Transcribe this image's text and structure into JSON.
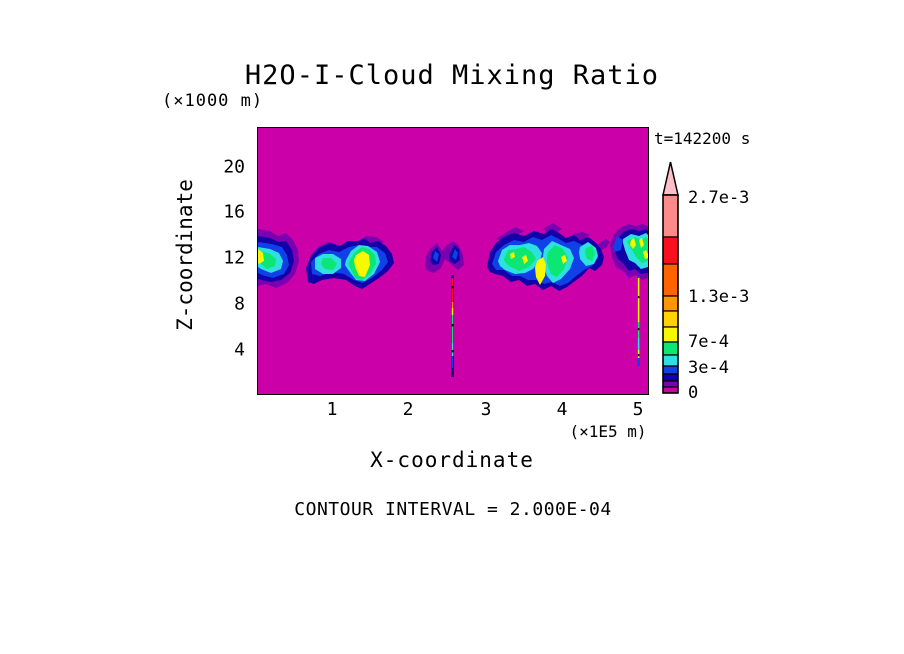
{
  "title": "H2O-I-Cloud Mixing Ratio",
  "timestamp": "t=142200 s",
  "footer_note": "CONTOUR INTERVAL = 2.000E-04",
  "y_axis": {
    "unit_label": "(×1000 m)",
    "title": "Z-coordinate",
    "ticks": [
      "20",
      "16",
      "12",
      "8",
      "4"
    ]
  },
  "x_axis": {
    "title": "X-coordinate",
    "unit_label": "(×1E5 m)",
    "ticks": [
      "1",
      "2",
      "3",
      "4",
      "5"
    ]
  },
  "colorbar": {
    "labels": [
      "2.7e-3",
      "1.3e-3",
      "7e-4",
      "3e-4",
      "0"
    ],
    "arrow_color": "#FFBEC8",
    "outline_color": "#000000",
    "segments_top_to_bottom": [
      {
        "color": "#FF8A8A",
        "height": 42
      },
      {
        "color": "#FA0F1E",
        "height": 27
      },
      {
        "color": "#FF6400",
        "height": 32
      },
      {
        "color": "#FF9600",
        "height": 15
      },
      {
        "color": "#FFD200",
        "height": 16
      },
      {
        "color": "#F8F800",
        "height": 15
      },
      {
        "color": "#0CE673",
        "height": 13
      },
      {
        "color": "#2EE0E0",
        "height": 11
      },
      {
        "color": "#1040E8",
        "height": 8
      },
      {
        "color": "#1200A8",
        "height": 7
      },
      {
        "color": "#7A00B0",
        "height": 6
      },
      {
        "color": "#CC00A8",
        "height": 6
      }
    ]
  },
  "plot": {
    "background_color": "#CC00A8",
    "border_color": "#000000"
  },
  "chart_data": {
    "type": "heatmap",
    "subtype": "filled-contour-field",
    "title": "H2O-I-Cloud Mixing Ratio",
    "time_label": "t=142200 s",
    "xlabel": "X-coordinate (×1E5 m)",
    "ylabel": "Z-coordinate (×1000 m)",
    "xlim": [
      0.05,
      5.1
    ],
    "ylim": [
      0,
      23
    ],
    "x_ticks": [
      1,
      2,
      3,
      4,
      5
    ],
    "y_ticks": [
      4,
      8,
      12,
      16,
      20
    ],
    "contour_interval": 0.0002,
    "labeled_levels": [
      0,
      0.0003,
      0.0007,
      0.0013,
      0.0027
    ],
    "background_value": 0,
    "grid": false,
    "legend_position": "right-colorbar-with-overflow-arrow",
    "features": [
      {
        "name": "anvil-cloud-at-left-edge",
        "x_range": [
          0.05,
          0.6
        ],
        "z_range": [
          9.1,
          14.1
        ],
        "peak_value": "~9e-4 (yellow core at left boundary)"
      },
      {
        "name": "anvil-cloud-two-lobed",
        "x_range": [
          0.65,
          1.9
        ],
        "z_range": [
          9.1,
          13.5
        ],
        "peak_value": "~1.1e-3 (yellow core in right lobe)"
      },
      {
        "name": "small-m-shaped-cloud",
        "x_range": [
          2.2,
          2.7
        ],
        "z_range": [
          10.7,
          13.3
        ],
        "peak_value": "~5e-4 (blue cores)"
      },
      {
        "name": "precipitation-shaft-1",
        "x_range": [
          2.53,
          2.58
        ],
        "z_range": [
          1.4,
          10.7
        ],
        "peak_value": "~2.7e-3 (red/orange near top, green-cyan below)"
      },
      {
        "name": "large-anvil-cloud",
        "x_range": [
          3.0,
          4.6
        ],
        "z_range": [
          8.9,
          14.5
        ],
        "peak_value": "~1.1e-3 (green body, scattered yellow flecks)"
      },
      {
        "name": "cloud-at-right-edge",
        "x_range": [
          4.65,
          5.1
        ],
        "z_range": [
          10.1,
          14.5
        ],
        "peak_value": "~1.1e-3 (green/yellow striped core)"
      },
      {
        "name": "precipitation-shaft-2",
        "x_range": [
          4.97,
          5.01
        ],
        "z_range": [
          2.1,
          10.4
        ],
        "peak_value": "~9e-4 (yellow shaft, green/cyan lower)"
      }
    ]
  }
}
